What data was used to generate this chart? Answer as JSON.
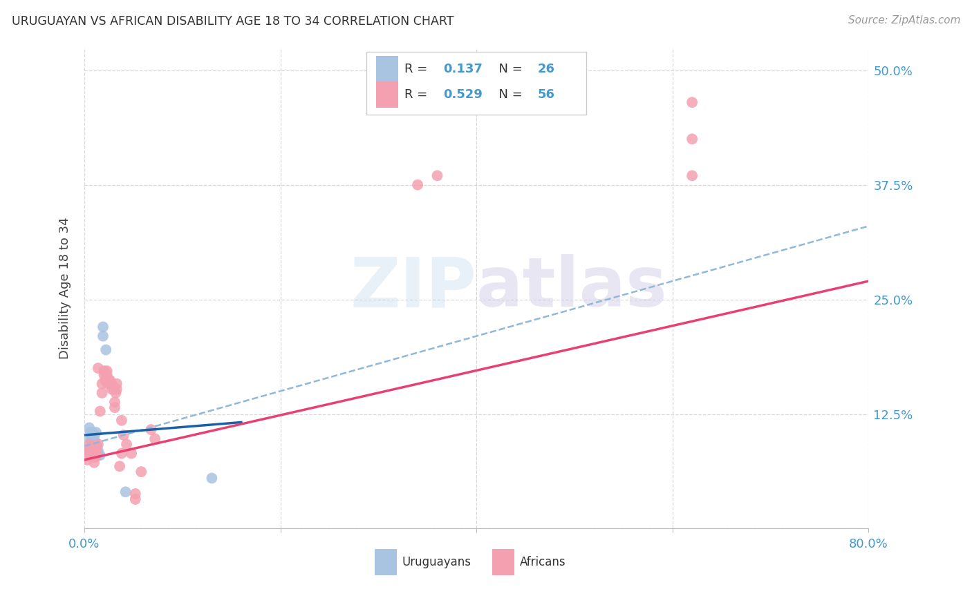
{
  "title": "URUGUAYAN VS AFRICAN DISABILITY AGE 18 TO 34 CORRELATION CHART",
  "source": "Source: ZipAtlas.com",
  "ylabel": "Disability Age 18 to 34",
  "xlim": [
    0.0,
    0.8
  ],
  "ylim": [
    0.0,
    0.525
  ],
  "xticks": [
    0.0,
    0.2,
    0.4,
    0.6,
    0.8
  ],
  "yticks": [
    0.0,
    0.125,
    0.25,
    0.375,
    0.5
  ],
  "xticklabels": [
    "0.0%",
    "",
    "",
    "",
    "80.0%"
  ],
  "yticklabels": [
    "",
    "12.5%",
    "25.0%",
    "37.5%",
    "50.0%"
  ],
  "legend_r_uruguayan": "0.137",
  "legend_n_uruguayan": "26",
  "legend_r_african": "0.529",
  "legend_n_african": "56",
  "uruguayan_color": "#a8c4e0",
  "african_color": "#f4a0b0",
  "uruguayan_line_color": "#1a5fa8",
  "african_line_color": "#e84070",
  "uruguayan_dashed_color": "#90b8d8",
  "watermark_zip": "ZIP",
  "watermark_atlas": "atlas",
  "background_color": "#ffffff",
  "grid_color": "#d8d8d8",
  "uruguayan_points": [
    [
      0.003,
      0.095
    ],
    [
      0.003,
      0.088
    ],
    [
      0.004,
      0.085
    ],
    [
      0.005,
      0.09
    ],
    [
      0.005,
      0.11
    ],
    [
      0.006,
      0.105
    ],
    [
      0.007,
      0.09
    ],
    [
      0.007,
      0.095
    ],
    [
      0.008,
      0.1
    ],
    [
      0.008,
      0.105
    ],
    [
      0.009,
      0.095
    ],
    [
      0.009,
      0.1
    ],
    [
      0.01,
      0.1
    ],
    [
      0.01,
      0.103
    ],
    [
      0.011,
      0.09
    ],
    [
      0.011,
      0.095
    ],
    [
      0.012,
      0.105
    ],
    [
      0.013,
      0.09
    ],
    [
      0.014,
      0.085
    ],
    [
      0.014,
      0.08
    ],
    [
      0.016,
      0.08
    ],
    [
      0.019,
      0.22
    ],
    [
      0.019,
      0.21
    ],
    [
      0.022,
      0.195
    ],
    [
      0.042,
      0.04
    ],
    [
      0.13,
      0.055
    ]
  ],
  "african_points": [
    [
      0.003,
      0.075
    ],
    [
      0.004,
      0.088
    ],
    [
      0.005,
      0.082
    ],
    [
      0.005,
      0.092
    ],
    [
      0.006,
      0.082
    ],
    [
      0.006,
      0.088
    ],
    [
      0.007,
      0.082
    ],
    [
      0.007,
      0.088
    ],
    [
      0.008,
      0.082
    ],
    [
      0.008,
      0.088
    ],
    [
      0.009,
      0.078
    ],
    [
      0.009,
      0.082
    ],
    [
      0.01,
      0.072
    ],
    [
      0.01,
      0.082
    ],
    [
      0.011,
      0.078
    ],
    [
      0.011,
      0.086
    ],
    [
      0.012,
      0.088
    ],
    [
      0.013,
      0.082
    ],
    [
      0.014,
      0.092
    ],
    [
      0.014,
      0.175
    ],
    [
      0.016,
      0.128
    ],
    [
      0.018,
      0.148
    ],
    [
      0.018,
      0.158
    ],
    [
      0.02,
      0.168
    ],
    [
      0.02,
      0.172
    ],
    [
      0.021,
      0.162
    ],
    [
      0.023,
      0.162
    ],
    [
      0.023,
      0.172
    ],
    [
      0.023,
      0.168
    ],
    [
      0.024,
      0.158
    ],
    [
      0.025,
      0.162
    ],
    [
      0.026,
      0.162
    ],
    [
      0.028,
      0.152
    ],
    [
      0.028,
      0.158
    ],
    [
      0.03,
      0.152
    ],
    [
      0.031,
      0.138
    ],
    [
      0.031,
      0.132
    ],
    [
      0.032,
      0.148
    ],
    [
      0.033,
      0.152
    ],
    [
      0.033,
      0.158
    ],
    [
      0.036,
      0.068
    ],
    [
      0.038,
      0.118
    ],
    [
      0.038,
      0.082
    ],
    [
      0.04,
      0.102
    ],
    [
      0.043,
      0.092
    ],
    [
      0.048,
      0.082
    ],
    [
      0.052,
      0.038
    ],
    [
      0.052,
      0.032
    ],
    [
      0.058,
      0.062
    ],
    [
      0.068,
      0.108
    ],
    [
      0.072,
      0.098
    ],
    [
      0.34,
      0.375
    ],
    [
      0.36,
      0.385
    ],
    [
      0.62,
      0.425
    ],
    [
      0.62,
      0.465
    ],
    [
      0.62,
      0.385
    ]
  ]
}
